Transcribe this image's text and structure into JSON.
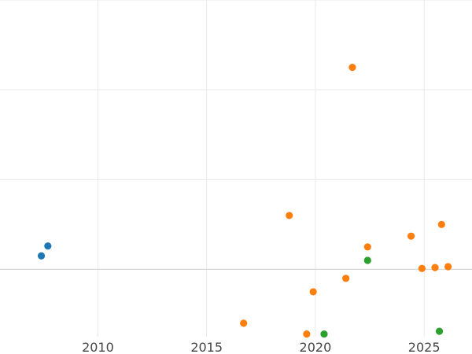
{
  "chart_data": {
    "type": "scatter",
    "title": "",
    "xlabel": "",
    "ylabel": "",
    "grid": true,
    "legend": "none",
    "xlim": [
      2005.5,
      2027.2
    ],
    "ylim": [
      -0.75,
      3.0
    ],
    "x_ticks": [
      2010,
      2015,
      2020,
      2025
    ],
    "x_tick_labels": [
      "2010",
      "2015",
      "2020",
      "2025"
    ],
    "y_gridlines": [
      0,
      1,
      2,
      3
    ],
    "series": [
      {
        "color": "#1f77b4",
        "points": [
          {
            "x": 2007.4,
            "y": 0.15
          },
          {
            "x": 2007.7,
            "y": 0.26
          }
        ]
      },
      {
        "color": "#ff7f0e",
        "points": [
          {
            "x": 2016.7,
            "y": -0.6
          },
          {
            "x": 2018.8,
            "y": 0.6
          },
          {
            "x": 2019.6,
            "y": -0.72
          },
          {
            "x": 2019.9,
            "y": -0.25
          },
          {
            "x": 2021.4,
            "y": -0.1
          },
          {
            "x": 2021.7,
            "y": 2.25
          },
          {
            "x": 2022.4,
            "y": 0.25
          },
          {
            "x": 2024.4,
            "y": 0.37
          },
          {
            "x": 2024.9,
            "y": 0.01
          },
          {
            "x": 2025.5,
            "y": 0.02
          },
          {
            "x": 2025.8,
            "y": 0.5
          },
          {
            "x": 2026.1,
            "y": 0.03
          }
        ]
      },
      {
        "color": "#2ca02c",
        "points": [
          {
            "x": 2020.4,
            "y": -0.72
          },
          {
            "x": 2022.4,
            "y": 0.1
          },
          {
            "x": 2025.7,
            "y": -0.69
          }
        ]
      }
    ]
  }
}
